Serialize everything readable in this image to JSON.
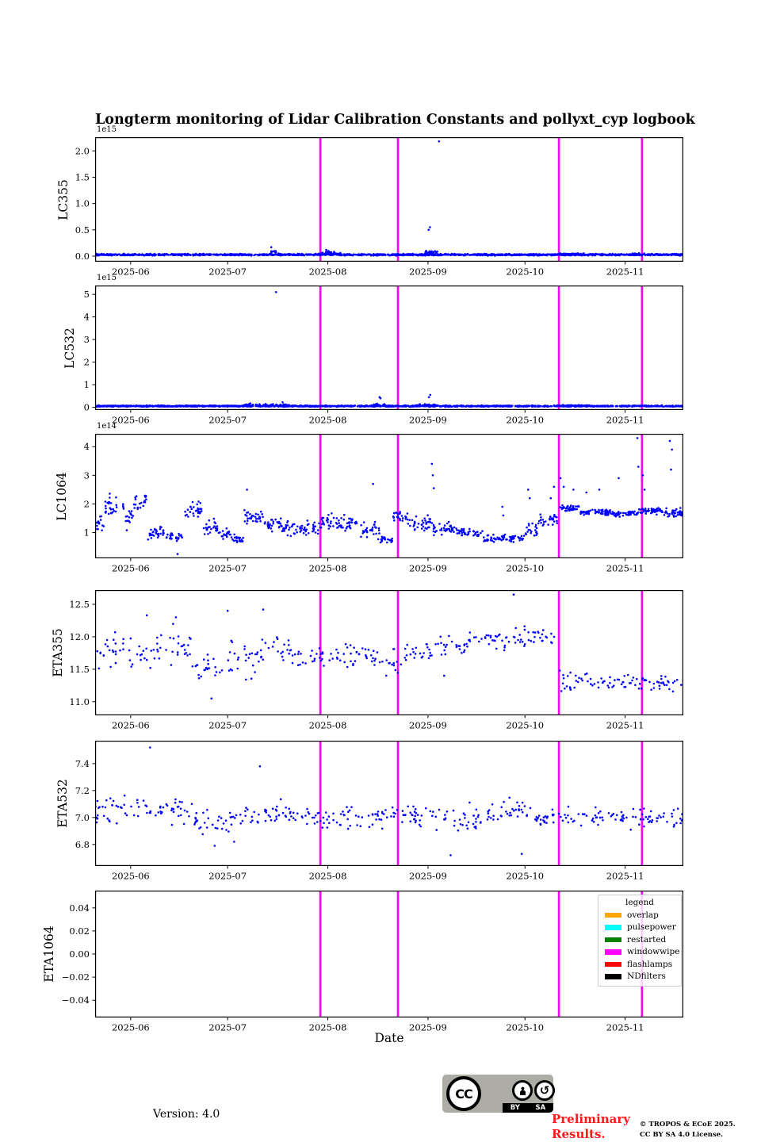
{
  "title": "Longterm monitoring of Lidar Calibration Constants and pollyxt_cyp logbook",
  "xlabel": "Date",
  "marker_color": "#0000ff",
  "x_axis": {
    "domain_days": [
      0,
      182
    ],
    "tick_days": [
      11,
      41,
      72,
      103,
      133,
      164
    ],
    "tick_labels": [
      "2025-06",
      "2025-07",
      "2025-08",
      "2025-09",
      "2025-10",
      "2025-11"
    ]
  },
  "event_lines": {
    "label": "windowwipe",
    "color": "#ff00ff",
    "days": [
      69.7,
      93.7,
      143.5,
      169.2
    ]
  },
  "legend": {
    "title": "legend",
    "entries": [
      {
        "label": "overlap",
        "color": "#ffa500"
      },
      {
        "label": "pulsepower",
        "color": "#00ffff"
      },
      {
        "label": "restarted",
        "color": "#008000"
      },
      {
        "label": "windowwipe",
        "color": "#ff00ff"
      },
      {
        "label": "flashlamps",
        "color": "#ff0000"
      },
      {
        "label": "NDfilters",
        "color": "#000000"
      }
    ]
  },
  "footer": {
    "version": "Version: 4.0",
    "preliminary_lines": [
      "Preliminary",
      "Results."
    ],
    "copyright_lines": [
      "© TROPOS & ECoE 2025.",
      "CC BY SA 4.0 License."
    ],
    "cc_badge": {
      "cc": "CC",
      "by": "BY",
      "sa": "SA"
    }
  },
  "chart_data": [
    {
      "name": "LC355",
      "type": "scatter",
      "ylabel": "LC355",
      "offset_text": "1e15",
      "ylim": [
        -0.105,
        2.26
      ],
      "yticks": [
        0,
        0.5,
        1,
        1.5,
        2
      ],
      "ytick_labels": [
        "0.0",
        "0.5",
        "1.0",
        "1.5",
        "2.0"
      ],
      "bands": [
        [
          0,
          182,
          1500,
          0.028,
          0.022
        ],
        [
          54,
          57,
          8,
          0.09,
          0.06
        ],
        [
          69,
          76,
          30,
          0.055,
          0.04
        ],
        [
          102,
          106,
          25,
          0.07,
          0.05
        ],
        [
          143,
          152,
          30,
          0.045,
          0.025
        ],
        [
          166,
          170,
          12,
          0.045,
          0.02
        ]
      ],
      "outliers": [
        [
          54.5,
          0.17
        ],
        [
          103.2,
          0.5
        ],
        [
          103.6,
          0.55
        ],
        [
          106.4,
          2.18
        ],
        [
          71.5,
          0.12
        ],
        [
          72.2,
          0.1
        ]
      ]
    },
    {
      "name": "LC532",
      "type": "scatter",
      "ylabel": "LC532",
      "offset_text": "1e15",
      "ylim": [
        -0.12,
        5.39
      ],
      "yticks": [
        0,
        1,
        2,
        3,
        4,
        5
      ],
      "ytick_labels": [
        "0",
        "1",
        "2",
        "3",
        "4",
        "5"
      ],
      "bands": [
        [
          0,
          182,
          1500,
          0.055,
          0.04
        ],
        [
          46,
          60,
          40,
          0.1,
          0.06
        ],
        [
          86,
          90,
          15,
          0.12,
          0.1
        ],
        [
          100,
          106,
          25,
          0.1,
          0.07
        ],
        [
          143,
          152,
          30,
          0.08,
          0.04
        ]
      ],
      "outliers": [
        [
          56,
          5.1
        ],
        [
          88,
          0.45
        ],
        [
          88.3,
          0.4
        ],
        [
          103.3,
          0.45
        ],
        [
          103.7,
          0.55
        ],
        [
          58,
          0.22
        ],
        [
          48,
          0.18
        ]
      ]
    },
    {
      "name": "LC1064",
      "type": "scatter",
      "ylabel": "LC1064",
      "offset_text": "1e14",
      "ylim": [
        0.1,
        4.45
      ],
      "yticks": [
        1,
        2,
        3,
        4
      ],
      "ytick_labels": [
        "1",
        "2",
        "3",
        "4"
      ],
      "bands": [
        [
          0,
          3,
          15,
          1.3,
          0.45
        ],
        [
          3,
          9,
          30,
          1.95,
          0.55
        ],
        [
          9,
          12,
          15,
          1.5,
          0.5
        ],
        [
          12,
          16,
          20,
          2.1,
          0.4
        ],
        [
          16,
          22,
          30,
          1.0,
          0.3
        ],
        [
          22,
          27,
          25,
          0.85,
          0.25
        ],
        [
          27,
          33,
          30,
          1.8,
          0.45
        ],
        [
          33,
          38,
          25,
          1.2,
          0.35
        ],
        [
          38,
          42,
          20,
          0.95,
          0.3
        ],
        [
          42,
          46,
          20,
          0.75,
          0.25
        ],
        [
          46,
          52,
          30,
          1.5,
          0.4
        ],
        [
          52,
          58,
          30,
          1.3,
          0.35
        ],
        [
          58,
          64,
          30,
          1.15,
          0.3
        ],
        [
          64,
          70,
          30,
          1.1,
          0.4
        ],
        [
          70,
          76,
          30,
          1.4,
          0.4
        ],
        [
          76,
          82,
          30,
          1.3,
          0.4
        ],
        [
          82,
          88,
          30,
          1.1,
          0.35
        ],
        [
          88,
          92,
          20,
          0.75,
          0.2
        ],
        [
          92,
          97,
          25,
          1.5,
          0.35
        ],
        [
          97,
          104,
          35,
          1.3,
          0.35
        ],
        [
          104,
          112,
          40,
          1.15,
          0.3
        ],
        [
          112,
          120,
          40,
          1.0,
          0.2
        ],
        [
          120,
          133,
          65,
          0.8,
          0.18
        ],
        [
          133,
          137,
          20,
          1.1,
          0.35
        ],
        [
          137,
          143,
          30,
          1.5,
          0.4
        ],
        [
          143.5,
          150,
          40,
          1.85,
          0.15
        ],
        [
          150,
          160,
          60,
          1.7,
          0.13
        ],
        [
          160,
          168,
          50,
          1.65,
          0.13
        ],
        [
          168,
          176,
          50,
          1.75,
          0.15
        ],
        [
          176,
          182,
          40,
          1.7,
          0.2
        ]
      ],
      "outliers": [
        [
          86,
          2.7
        ],
        [
          104.2,
          3.4
        ],
        [
          104.5,
          3.0
        ],
        [
          104.8,
          2.55
        ],
        [
          25.5,
          0.25
        ],
        [
          47,
          2.5
        ],
        [
          126,
          1.9
        ],
        [
          126.3,
          1.6
        ],
        [
          134,
          2.5
        ],
        [
          134.5,
          2.2
        ],
        [
          141,
          2.2
        ],
        [
          142,
          2.6
        ],
        [
          144,
          2.9
        ],
        [
          145,
          2.6
        ],
        [
          148,
          2.5
        ],
        [
          152,
          2.4
        ],
        [
          156,
          2.5
        ],
        [
          162,
          2.9
        ],
        [
          167.8,
          4.3
        ],
        [
          168.1,
          3.3
        ],
        [
          169.5,
          3.0
        ],
        [
          170,
          2.5
        ],
        [
          177.8,
          4.2
        ],
        [
          178.5,
          3.9
        ],
        [
          178.2,
          3.2
        ]
      ]
    },
    {
      "name": "ETA355",
      "type": "scatter",
      "ylabel": "ETA355",
      "ylim": [
        10.79,
        12.72
      ],
      "yticks": [
        11.0,
        11.5,
        12.0,
        12.5
      ],
      "ytick_labels": [
        "11.0",
        "11.5",
        "12.0",
        "12.5"
      ],
      "bands": [
        [
          0,
          10,
          23,
          11.8,
          0.4
        ],
        [
          10,
          20,
          23,
          11.7,
          0.42
        ],
        [
          20,
          30,
          23,
          11.85,
          0.4
        ],
        [
          30,
          40,
          23,
          11.5,
          0.3
        ],
        [
          40,
          50,
          23,
          11.7,
          0.45
        ],
        [
          50,
          60,
          23,
          11.8,
          0.35
        ],
        [
          60,
          72,
          27,
          11.7,
          0.22
        ],
        [
          72,
          85,
          30,
          11.72,
          0.28
        ],
        [
          85,
          95,
          23,
          11.6,
          0.3
        ],
        [
          95,
          105,
          23,
          11.75,
          0.18
        ],
        [
          105,
          115,
          23,
          11.85,
          0.22
        ],
        [
          115,
          128,
          30,
          11.95,
          0.22
        ],
        [
          128,
          143,
          34,
          12.0,
          0.22
        ],
        [
          143.5,
          155,
          26,
          11.3,
          0.25
        ],
        [
          155,
          170,
          34,
          11.3,
          0.2
        ],
        [
          170,
          182,
          28,
          11.28,
          0.18
        ]
      ],
      "outliers": [
        [
          16,
          12.33
        ],
        [
          41,
          12.4
        ],
        [
          52,
          12.42
        ],
        [
          129.5,
          12.65
        ],
        [
          108,
          11.4
        ],
        [
          36,
          11.05
        ],
        [
          25,
          12.3
        ]
      ]
    },
    {
      "name": "ETA532",
      "type": "scatter",
      "ylabel": "ETA532",
      "ylim": [
        6.64,
        7.57
      ],
      "yticks": [
        6.8,
        7.0,
        7.2,
        7.4
      ],
      "ytick_labels": [
        "6.8",
        "7.0",
        "7.2",
        "7.4"
      ],
      "bands": [
        [
          0,
          15,
          35,
          7.05,
          0.14
        ],
        [
          15,
          30,
          35,
          7.04,
          0.13
        ],
        [
          30,
          45,
          35,
          6.97,
          0.12
        ],
        [
          45,
          60,
          35,
          7.02,
          0.12
        ],
        [
          60,
          75,
          35,
          7.0,
          0.11
        ],
        [
          75,
          90,
          35,
          7.0,
          0.12
        ],
        [
          90,
          105,
          35,
          7.02,
          0.11
        ],
        [
          105,
          120,
          35,
          7.0,
          0.13
        ],
        [
          120,
          135,
          35,
          7.04,
          0.13
        ],
        [
          135,
          150,
          35,
          7.0,
          0.11
        ],
        [
          150,
          165,
          35,
          7.0,
          0.1
        ],
        [
          165,
          182,
          40,
          7.0,
          0.11
        ]
      ],
      "outliers": [
        [
          17,
          7.52
        ],
        [
          51,
          7.38
        ],
        [
          37,
          6.79
        ],
        [
          43,
          6.82
        ],
        [
          110,
          6.72
        ],
        [
          132,
          6.73
        ]
      ]
    },
    {
      "name": "ETA1064",
      "type": "scatter",
      "ylabel": "ETA1064",
      "ylim": [
        -0.055,
        0.055
      ],
      "yticks": [
        -0.04,
        -0.02,
        0,
        0.02,
        0.04
      ],
      "ytick_labels": [
        "−0.04",
        "−0.02",
        "0.00",
        "0.02",
        "0.04"
      ],
      "bands": [],
      "outliers": []
    }
  ]
}
